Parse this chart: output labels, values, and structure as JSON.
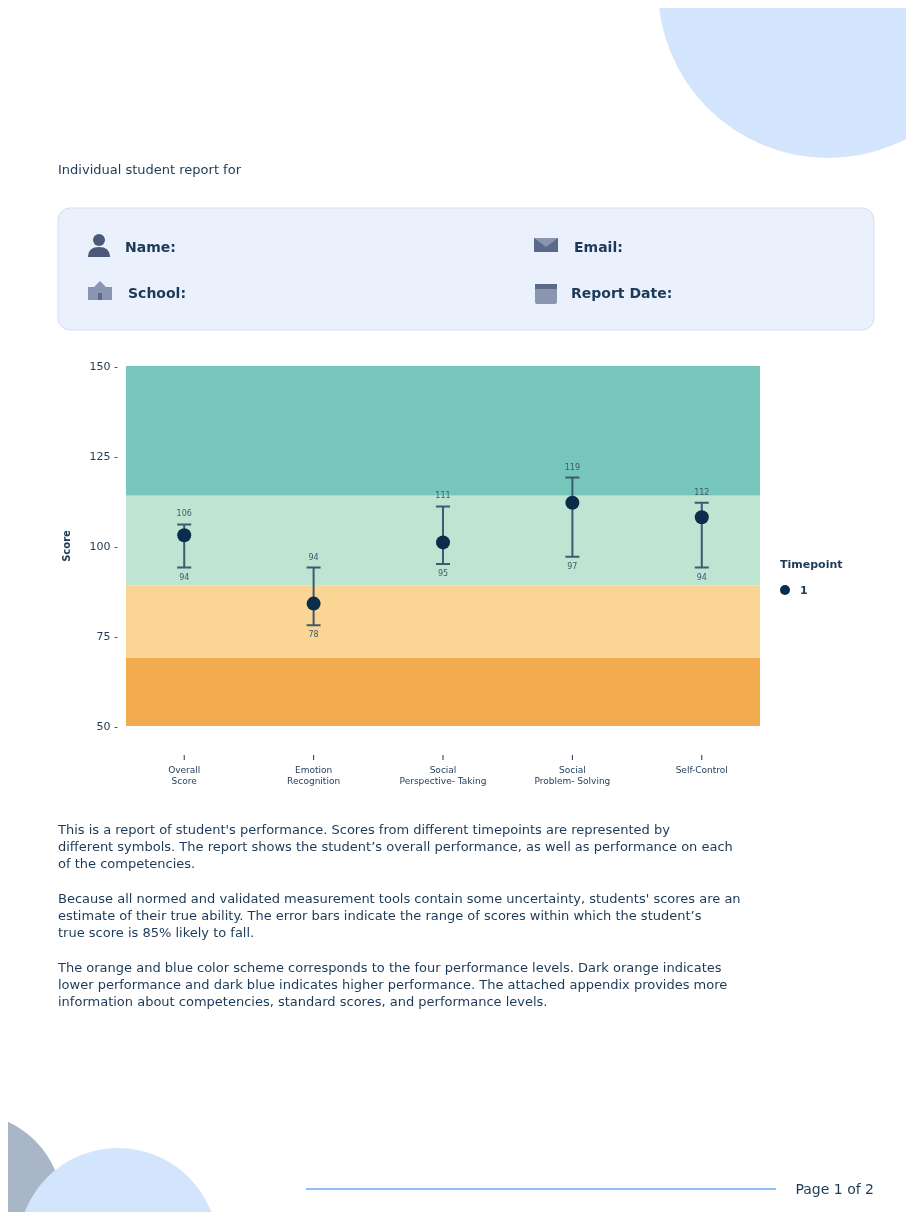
{
  "chart_data": [
    {
      "type": "other",
      "title": "Individual student report for",
      "annotations": [
        "Name:",
        "Email:",
        "School:",
        "Report Date:"
      ]
    },
    {
      "type": "scatter",
      "ylabel": "Score",
      "legend_title": "Timepoint",
      "legend": "right",
      "marker": "circle",
      "categories": [
        "Overall\nScore",
        "Emotion\nRecognition",
        "Social\nPerspective- Taking",
        "Social\nProblem- Solving",
        "Self-Control"
      ],
      "series": [
        {
          "name": "1",
          "color": "#0b2c4a",
          "values": [
            103,
            84,
            101,
            112,
            108
          ],
          "errors": [
            [
              94,
              106
            ],
            [
              78,
              94
            ],
            [
              95,
              111
            ],
            [
              97,
              119
            ],
            [
              94,
              112
            ]
          ]
        }
      ],
      "ylim": [
        50,
        150
      ],
      "yticks": [
        {
          "value": 50,
          "label": "50 -"
        },
        {
          "value": 75,
          "label": "75 -"
        },
        {
          "value": 100,
          "label": "100 -"
        },
        {
          "value": 125,
          "label": "125 -"
        },
        {
          "value": 150,
          "label": "150 -"
        }
      ],
      "bands": [
        {
          "axis": "y",
          "from": 50,
          "to": 69,
          "color": "#f2ab4f"
        },
        {
          "axis": "y",
          "from": 69,
          "to": 89,
          "color": "#fbd594"
        },
        {
          "axis": "y",
          "from": 89,
          "to": 114,
          "color": "#bde5d2"
        },
        {
          "axis": "y",
          "from": 114,
          "to": 150,
          "color": "#77c6bc"
        }
      ],
      "annotations": [
        {
          "text": "106",
          "x": "Overall\nScore",
          "y": 106
        },
        {
          "text": "94",
          "x": "Overall\nScore",
          "y": 94
        },
        {
          "text": "94",
          "x": "Emotion\nRecognition",
          "y": 94
        },
        {
          "text": "78",
          "x": "Emotion\nRecognition",
          "y": 78
        },
        {
          "text": "111",
          "x": "Social\nPerspective- Taking",
          "y": 111
        },
        {
          "text": "95",
          "x": "Social\nPerspective- Taking",
          "y": 95
        },
        {
          "text": "119",
          "x": "Social\nProblem- Solving",
          "y": 119
        },
        {
          "text": "97",
          "x": "Social\nProblem- Solving",
          "y": 97
        },
        {
          "text": "112",
          "x": "Self-Control",
          "y": 112
        },
        {
          "text": "94",
          "x": "Self-Control",
          "y": 94
        },
        "This is a report of student's performance. Scores from different timepoints are represented by different symbols. The report shows the student’s overall performance, as well as performance on each of the competencies.",
        "Because all normed and validated measurement tools contain some uncertainty, students' scores are an estimate of their true ability. The error bars indicate the range of scores within which the student’s true score is 85% likely to fall.",
        "The orange and blue color scheme corresponds to the four performance levels. Dark orange indicates lower performance and dark blue indicates higher performance. The attached appendix provides more information about competencies, standard scores, and performance levels.",
        "Page 1 of 2"
      ]
    }
  ]
}
